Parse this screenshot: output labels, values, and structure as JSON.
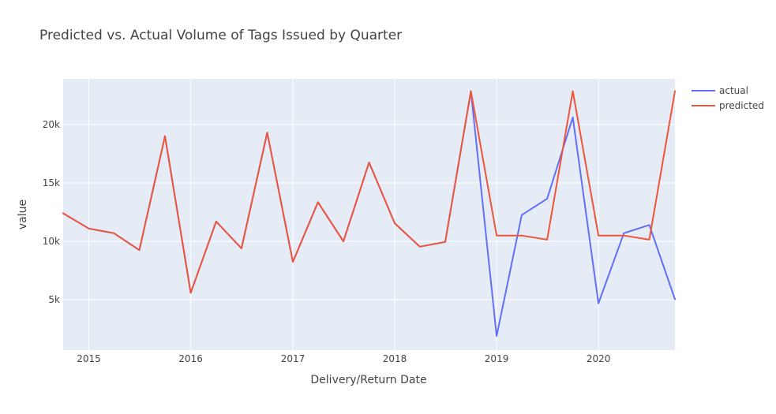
{
  "chart_data": {
    "type": "line",
    "title": "Predicted vs. Actual Volume of Tags Issued by Quarter",
    "xlabel": "Delivery/Return Date",
    "ylabel": "value",
    "x": [
      "2014-10-01",
      "2015-01-01",
      "2015-04-01",
      "2015-07-01",
      "2015-10-01",
      "2016-01-01",
      "2016-04-01",
      "2016-07-01",
      "2016-10-01",
      "2017-01-01",
      "2017-04-01",
      "2017-07-01",
      "2017-10-01",
      "2018-01-01",
      "2018-04-01",
      "2018-07-01",
      "2018-10-01",
      "2019-01-01",
      "2019-04-01",
      "2019-07-01",
      "2019-10-01",
      "2020-01-01",
      "2020-04-01",
      "2020-07-01",
      "2020-10-01"
    ],
    "xlim": [
      "2014-10-01",
      "2020-10-01"
    ],
    "ylim": [
      700,
      23900
    ],
    "x_ticks": [
      {
        "date": "2015-01-01",
        "label": "2015"
      },
      {
        "date": "2016-01-01",
        "label": "2016"
      },
      {
        "date": "2017-01-01",
        "label": "2017"
      },
      {
        "date": "2018-01-01",
        "label": "2018"
      },
      {
        "date": "2019-01-01",
        "label": "2019"
      },
      {
        "date": "2020-01-01",
        "label": "2020"
      }
    ],
    "y_ticks": [
      {
        "value": 5000,
        "label": "5k"
      },
      {
        "value": 10000,
        "label": "10k"
      },
      {
        "value": 15000,
        "label": "15k"
      },
      {
        "value": 20000,
        "label": "20k"
      }
    ],
    "grid": true,
    "legend_position": "top-right",
    "series": [
      {
        "name": "actual",
        "color": "#636efa",
        "values": [
          12400,
          11100,
          10700,
          9250,
          19000,
          5600,
          11700,
          9400,
          19300,
          8250,
          13350,
          10000,
          16750,
          11550,
          9550,
          9950,
          22850,
          1900,
          12250,
          13650,
          20600,
          4700,
          10700,
          11400,
          5050
        ]
      },
      {
        "name": "predicted",
        "color": "#ef553b",
        "values": [
          12400,
          11100,
          10700,
          9250,
          19000,
          5600,
          11700,
          9400,
          19300,
          8250,
          13350,
          10000,
          16750,
          11550,
          9550,
          9950,
          22850,
          10500,
          10500,
          10150,
          22850,
          10500,
          10500,
          10150,
          22850
        ]
      }
    ],
    "plot_bg": "#e5ecf6",
    "grid_color": "#ffffff",
    "text_color": "#444444"
  }
}
